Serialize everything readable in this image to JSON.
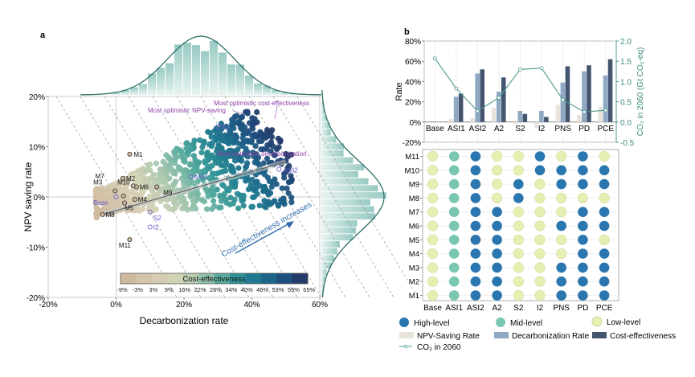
{
  "panels": {
    "a_label": "a",
    "b_label": "b"
  },
  "chart_data": [
    {
      "id": "panel-a",
      "type": "scatter",
      "title": "",
      "xlabel": "Decarbonization rate",
      "ylabel": "NPV saving rate",
      "xlim": [
        -0.2,
        0.6
      ],
      "ylim": [
        -0.2,
        0.2
      ],
      "xticks": [
        -0.2,
        0.0,
        0.2,
        0.4,
        0.6
      ],
      "xtick_labels": [
        "-20%",
        "0%",
        "20%",
        "40%",
        "60%"
      ],
      "yticks": [
        -0.2,
        -0.1,
        0.0,
        0.1,
        0.2
      ],
      "ytick_labels": [
        "-20%",
        "-10%",
        "0%",
        "10%",
        "20%"
      ],
      "grid": false,
      "colorbar": {
        "title": "Cost-effectiveness",
        "tick_labels": [
          "-9%",
          "-3%",
          "3%",
          "9%",
          "16%",
          "22%",
          "28%",
          "34%",
          "40%",
          "46%",
          "53%",
          "59%",
          "65%"
        ],
        "colors": [
          "#cdb99e",
          "#d3c3a9",
          "#d7ccb3",
          "#d2d2b4",
          "#b9cbb0",
          "#8fc0aa",
          "#58ab9e",
          "#2f9296",
          "#217a8f",
          "#1d6589",
          "#1f4f7e",
          "#243c6c",
          "#262d55"
        ],
        "placement": "bottom-center"
      },
      "labeled_points": [
        {
          "label": "M1",
          "x": 0.04,
          "y": 0.085,
          "group": "m"
        },
        {
          "label": "M2",
          "x": 0.02,
          "y": 0.037,
          "group": "m"
        },
        {
          "label": "M3",
          "x": -0.003,
          "y": 0.012,
          "group": "m"
        },
        {
          "label": "M4",
          "x": 0.055,
          "y": -0.005,
          "group": "m"
        },
        {
          "label": "M5",
          "x": 0.025,
          "y": -0.012,
          "group": "m"
        },
        {
          "label": "M6",
          "x": 0.06,
          "y": 0.02,
          "group": "m"
        },
        {
          "label": "M7",
          "x": 0.022,
          "y": 0.002,
          "group": "m"
        },
        {
          "label": "M8",
          "x": -0.04,
          "y": -0.035,
          "group": "m"
        },
        {
          "label": "M9",
          "x": 0.12,
          "y": 0.02,
          "group": "m"
        },
        {
          "label": "M10",
          "x": 0.05,
          "y": 0.022,
          "group": "m"
        },
        {
          "label": "M11",
          "x": 0.04,
          "y": -0.085,
          "group": "m"
        },
        {
          "label": "Base",
          "x": 0.0,
          "y": 0.0,
          "group": "s"
        },
        {
          "label": "S2",
          "x": 0.1,
          "y": -0.03,
          "group": "s"
        },
        {
          "label": "I2",
          "x": 0.1,
          "y": -0.06,
          "group": "s"
        },
        {
          "label": "ASI1",
          "x": 0.22,
          "y": 0.04,
          "group": "s"
        },
        {
          "label": "ASI2",
          "x": 0.48,
          "y": 0.055,
          "group": "s"
        },
        {
          "label": "A2",
          "x": 0.3,
          "y": 0.14,
          "group": "s"
        }
      ],
      "annotations": [
        {
          "text": "Most optimistic cost-effectiveness"
        },
        {
          "text": "Most optimistic NPV-saving"
        },
        {
          "text": "Most optimistic decarbonization"
        },
        {
          "text": "Cost-effectiveness increases"
        }
      ],
      "trend_line": {
        "x": [
          -0.04,
          0.5
        ],
        "y": [
          -0.035,
          0.07
        ]
      },
      "marginal_histograms": {
        "x_peak": 0.25,
        "y_peak": 0.0
      }
    },
    {
      "id": "panel-b-bars",
      "type": "bar",
      "categories": [
        "Base",
        "ASI1",
        "ASI2",
        "A2",
        "S2",
        "I2",
        "PNS",
        "PD",
        "PCE"
      ],
      "ylabel": "Rate",
      "y2label": "CO₂ in 2060 (Gt CO₂-eq)",
      "ylim": [
        -0.2,
        0.8
      ],
      "yticks": [
        -0.2,
        0.0,
        0.2,
        0.4,
        0.6,
        0.8
      ],
      "ytick_labels": [
        "-20%",
        "0%",
        "20%",
        "40%",
        "60%",
        "80%"
      ],
      "y2lim": [
        -0.5,
        2.0
      ],
      "y2ticks": [
        -0.5,
        0.0,
        0.5,
        1.0,
        1.5,
        2.0
      ],
      "y2tick_labels": [
        "-0.5",
        "0.0",
        "0.5",
        "1.0",
        "1.5",
        "2.0"
      ],
      "series": [
        {
          "name": "NPV-Saving Rate",
          "color": "#e8e4dc",
          "values": [
            0.0,
            0.03,
            0.04,
            0.14,
            -0.02,
            -0.06,
            0.17,
            0.07,
            0.15
          ]
        },
        {
          "name": "Decarbonization Rate",
          "color": "#8fa8c3",
          "values": [
            0.0,
            0.25,
            0.48,
            0.3,
            0.11,
            0.11,
            0.39,
            0.5,
            0.46
          ]
        },
        {
          "name": "Cost-effectiveness",
          "color": "#44556f",
          "values": [
            0.0,
            0.28,
            0.52,
            0.44,
            0.08,
            0.05,
            0.55,
            0.56,
            0.62
          ]
        },
        {
          "name": "CO₂ in 2060",
          "type": "line",
          "axis": "right",
          "color": "#4b9a90",
          "values": [
            1.57,
            0.83,
            0.27,
            0.6,
            1.3,
            1.33,
            0.55,
            0.25,
            0.29
          ]
        }
      ]
    },
    {
      "id": "panel-b-matrix",
      "type": "heatmap",
      "rows": [
        "M11",
        "M10",
        "M9",
        "M8",
        "M7",
        "M6",
        "M5",
        "M4",
        "M3",
        "M2",
        "M1"
      ],
      "columns": [
        "Base",
        "ASI1",
        "ASI2",
        "A2",
        "S2",
        "I2",
        "PNS",
        "PD",
        "PCE"
      ],
      "levels": {
        "H": "High-level",
        "M": "Mid-level",
        "L": "Low-level"
      },
      "level_colors": {
        "H": "#2a76ae",
        "M": "#79c7b2",
        "L": "#e6efb2"
      },
      "values": [
        [
          "L",
          "M",
          "H",
          "L",
          "L",
          "H",
          "L",
          "H",
          "L"
        ],
        [
          "L",
          "M",
          "H",
          "L",
          "L",
          "H",
          "H",
          "H",
          "H"
        ],
        [
          "L",
          "M",
          "H",
          "L",
          "H",
          "L",
          "H",
          "H",
          "H"
        ],
        [
          "L",
          "M",
          "H",
          "L",
          "H",
          "L",
          "L",
          "L",
          "L"
        ],
        [
          "L",
          "M",
          "H",
          "H",
          "L",
          "L",
          "L",
          "H",
          "H"
        ],
        [
          "L",
          "M",
          "H",
          "H",
          "L",
          "L",
          "H",
          "H",
          "H"
        ],
        [
          "L",
          "M",
          "H",
          "H",
          "L",
          "L",
          "L",
          "H",
          "L"
        ],
        [
          "L",
          "M",
          "H",
          "H",
          "L",
          "L",
          "L",
          "H",
          "H"
        ],
        [
          "L",
          "M",
          "H",
          "H",
          "L",
          "L",
          "H",
          "H",
          "H"
        ],
        [
          "L",
          "M",
          "H",
          "H",
          "L",
          "L",
          "H",
          "H",
          "H"
        ],
        [
          "L",
          "M",
          "H",
          "H",
          "L",
          "L",
          "H",
          "H",
          "H"
        ]
      ]
    }
  ],
  "legend": {
    "items": [
      {
        "label": "High-level",
        "kind": "circle",
        "color": "#2a76ae"
      },
      {
        "label": "Mid-level",
        "kind": "circle",
        "color": "#79c7b2"
      },
      {
        "label": "Low-level",
        "kind": "circle",
        "color": "#e6efb2"
      },
      {
        "label": "NPV-Saving Rate",
        "kind": "rect",
        "color": "#e8e4dc"
      },
      {
        "label": "Decarbonization Rate",
        "kind": "rect",
        "color": "#8fa8c3"
      },
      {
        "label": "Cost-effectiveness",
        "kind": "rect",
        "color": "#44556f"
      },
      {
        "label": "CO₂ in 2060",
        "kind": "line",
        "color": "#4b9a90"
      }
    ]
  }
}
